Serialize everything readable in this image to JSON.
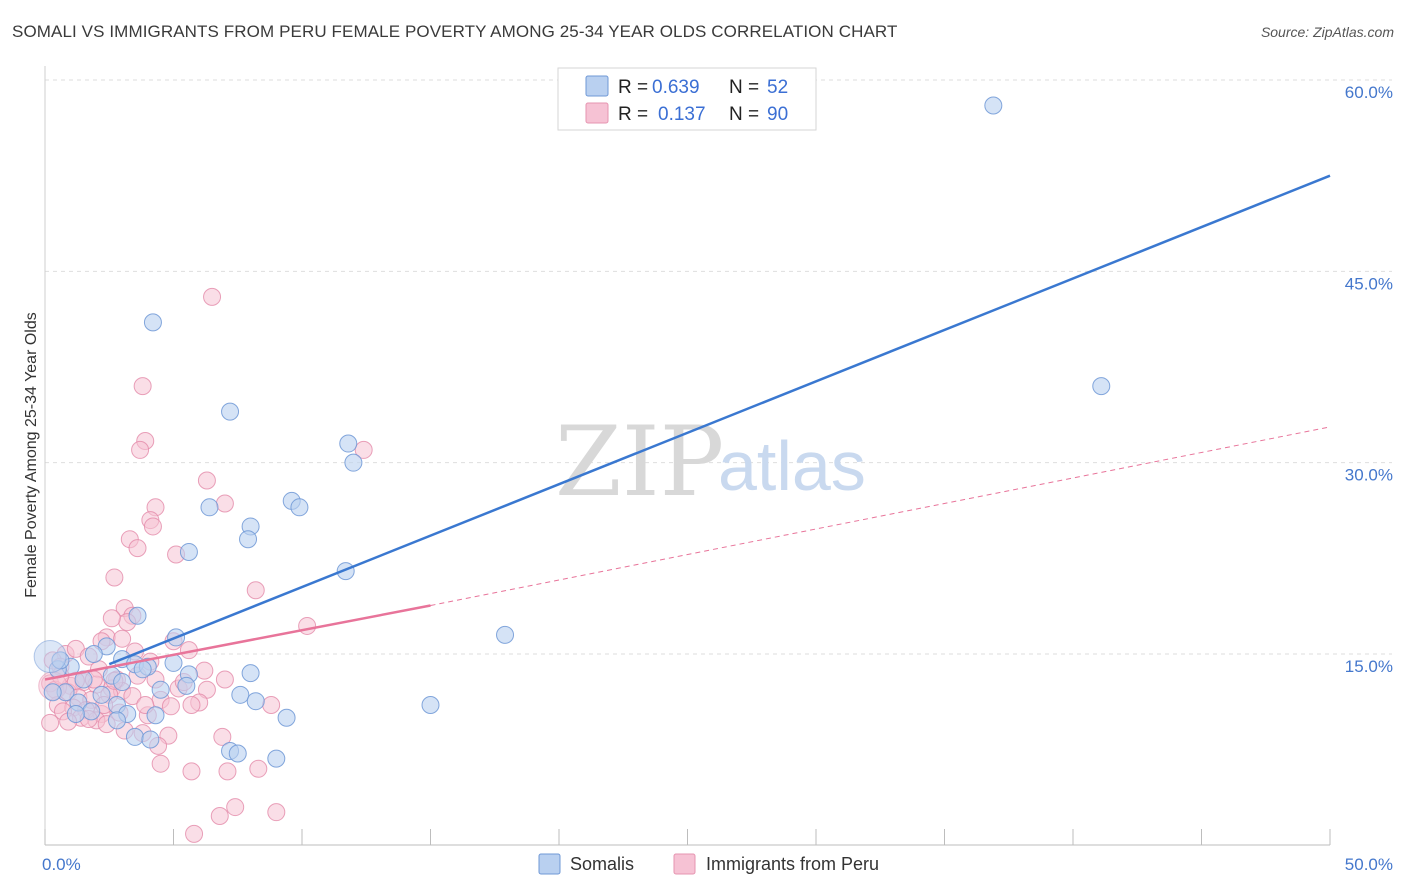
{
  "title": "SOMALI VS IMMIGRANTS FROM PERU FEMALE POVERTY AMONG 25-34 YEAR OLDS CORRELATION CHART",
  "source": "Source: ZipAtlas.com",
  "watermark": {
    "zip": "ZIP",
    "atlas": "atlas"
  },
  "colors": {
    "somali": "#3a78d0",
    "peru": "#e8749a",
    "somali_fill": "#b9d0f0",
    "peru_fill": "#f6c2d4"
  },
  "chart_data": {
    "type": "scatter",
    "title": "SOMALI VS IMMIGRANTS FROM PERU FEMALE POVERTY AMONG 25-34 YEAR OLDS CORRELATION CHART",
    "xlabel": "",
    "ylabel": "Female Poverty Among 25-34 Year Olds",
    "xlim": [
      0,
      50
    ],
    "ylim": [
      0,
      60
    ],
    "x_tick_labels": [
      "0.0%",
      "50.0%"
    ],
    "y_ticks": [
      15,
      30,
      45,
      60
    ],
    "y_tick_labels": [
      "15.0%",
      "30.0%",
      "45.0%",
      "60.0%"
    ],
    "legend": [
      {
        "name": "Somalis",
        "r_label": "R =",
        "r": "0.639",
        "n_label": "N =",
        "n": "52"
      },
      {
        "name": "Immigrants from Peru",
        "r_label": "R =",
        "r": "0.137",
        "n_label": "N =",
        "n": "90"
      }
    ],
    "series": [
      {
        "name": "Somalis",
        "trend": {
          "x": [
            2.5,
            50
          ],
          "y": [
            14.2,
            52.5
          ]
        },
        "points": [
          [
            4.2,
            41.0
          ],
          [
            7.2,
            34.0
          ],
          [
            36.9,
            58.0
          ],
          [
            41.1,
            36.0
          ],
          [
            11.8,
            31.5
          ],
          [
            12.0,
            30.0
          ],
          [
            9.6,
            27.0
          ],
          [
            6.4,
            26.5
          ],
          [
            9.9,
            26.5
          ],
          [
            8.0,
            25.0
          ],
          [
            7.9,
            24.0
          ],
          [
            5.6,
            23.0
          ],
          [
            11.7,
            21.5
          ],
          [
            17.9,
            16.5
          ],
          [
            5.1,
            16.3
          ],
          [
            3.6,
            18.0
          ],
          [
            2.4,
            15.6
          ],
          [
            1.9,
            15.0
          ],
          [
            3.0,
            14.6
          ],
          [
            3.5,
            14.2
          ],
          [
            4.0,
            14.0
          ],
          [
            5.0,
            14.3
          ],
          [
            1.0,
            14.0
          ],
          [
            0.5,
            13.8
          ],
          [
            2.6,
            13.3
          ],
          [
            5.6,
            13.4
          ],
          [
            8.0,
            13.5
          ],
          [
            1.5,
            13.0
          ],
          [
            3.0,
            12.8
          ],
          [
            5.5,
            12.5
          ],
          [
            4.5,
            12.2
          ],
          [
            0.8,
            12.0
          ],
          [
            2.2,
            11.8
          ],
          [
            7.6,
            11.8
          ],
          [
            8.2,
            11.3
          ],
          [
            1.3,
            11.2
          ],
          [
            2.8,
            11.0
          ],
          [
            15.0,
            11.0
          ],
          [
            1.8,
            10.5
          ],
          [
            1.2,
            10.3
          ],
          [
            3.2,
            10.3
          ],
          [
            4.3,
            10.2
          ],
          [
            9.4,
            10.0
          ],
          [
            2.8,
            9.8
          ],
          [
            7.2,
            7.4
          ],
          [
            7.5,
            7.2
          ],
          [
            3.5,
            8.5
          ],
          [
            4.1,
            8.3
          ],
          [
            9.0,
            6.8
          ],
          [
            0.3,
            12.0
          ],
          [
            0.6,
            14.5
          ],
          [
            3.8,
            13.8
          ]
        ]
      },
      {
        "name": "Immigrants from Peru",
        "trend": {
          "x": [
            0,
            15
          ],
          "y": [
            13.0,
            18.8
          ]
        },
        "trend_dashed": {
          "x": [
            15,
            50
          ],
          "y": [
            18.8,
            32.8
          ]
        },
        "points": [
          [
            6.5,
            43.0
          ],
          [
            3.8,
            36.0
          ],
          [
            3.9,
            31.7
          ],
          [
            3.7,
            31.0
          ],
          [
            12.4,
            31.0
          ],
          [
            6.3,
            28.6
          ],
          [
            4.3,
            26.5
          ],
          [
            7.0,
            26.8
          ],
          [
            4.1,
            25.5
          ],
          [
            4.2,
            25.0
          ],
          [
            3.3,
            24.0
          ],
          [
            3.6,
            23.3
          ],
          [
            5.1,
            22.8
          ],
          [
            2.7,
            21.0
          ],
          [
            8.2,
            20.0
          ],
          [
            3.1,
            18.6
          ],
          [
            3.4,
            18.0
          ],
          [
            3.2,
            17.5
          ],
          [
            2.6,
            17.8
          ],
          [
            10.2,
            17.2
          ],
          [
            2.4,
            16.3
          ],
          [
            2.2,
            16.0
          ],
          [
            3.0,
            16.2
          ],
          [
            5.0,
            16.0
          ],
          [
            5.6,
            15.3
          ],
          [
            0.8,
            15.0
          ],
          [
            1.2,
            15.4
          ],
          [
            1.7,
            14.8
          ],
          [
            0.3,
            14.5
          ],
          [
            0.6,
            14.0
          ],
          [
            2.1,
            13.8
          ],
          [
            3.6,
            13.3
          ],
          [
            2.8,
            13.0
          ],
          [
            4.3,
            13.0
          ],
          [
            7.0,
            13.0
          ],
          [
            0.2,
            12.7
          ],
          [
            1.0,
            12.5
          ],
          [
            1.5,
            12.8
          ],
          [
            2.0,
            12.6
          ],
          [
            2.6,
            12.3
          ],
          [
            3.0,
            12.1
          ],
          [
            5.2,
            12.3
          ],
          [
            6.3,
            12.2
          ],
          [
            0.4,
            12.2
          ],
          [
            0.9,
            12.0
          ],
          [
            1.3,
            11.6
          ],
          [
            1.8,
            11.4
          ],
          [
            2.5,
            11.8
          ],
          [
            3.4,
            11.7
          ],
          [
            4.5,
            11.4
          ],
          [
            6.0,
            11.2
          ],
          [
            8.8,
            11.0
          ],
          [
            0.5,
            11.0
          ],
          [
            1.1,
            10.8
          ],
          [
            1.6,
            10.6
          ],
          [
            2.2,
            10.3
          ],
          [
            2.9,
            10.4
          ],
          [
            4.0,
            10.2
          ],
          [
            5.7,
            11.0
          ],
          [
            0.7,
            10.5
          ],
          [
            1.4,
            10.0
          ],
          [
            2.0,
            9.8
          ],
          [
            2.4,
            9.5
          ],
          [
            3.1,
            9.0
          ],
          [
            3.8,
            8.8
          ],
          [
            4.8,
            8.6
          ],
          [
            6.9,
            8.5
          ],
          [
            0.2,
            9.6
          ],
          [
            4.4,
            7.8
          ],
          [
            4.5,
            6.4
          ],
          [
            5.7,
            5.8
          ],
          [
            7.1,
            5.8
          ],
          [
            8.3,
            6.0
          ],
          [
            7.4,
            3.0
          ],
          [
            9.0,
            2.6
          ],
          [
            6.8,
            2.3
          ],
          [
            5.8,
            0.9
          ],
          [
            1.2,
            12.9
          ],
          [
            2.7,
            12.9
          ],
          [
            0.6,
            13.3
          ],
          [
            1.9,
            13.0
          ],
          [
            3.9,
            11.0
          ],
          [
            4.9,
            10.9
          ],
          [
            2.3,
            11.0
          ],
          [
            1.7,
            9.9
          ],
          [
            0.9,
            9.7
          ],
          [
            5.4,
            12.8
          ],
          [
            6.2,
            13.7
          ],
          [
            4.1,
            14.4
          ],
          [
            3.5,
            15.2
          ]
        ]
      }
    ]
  }
}
